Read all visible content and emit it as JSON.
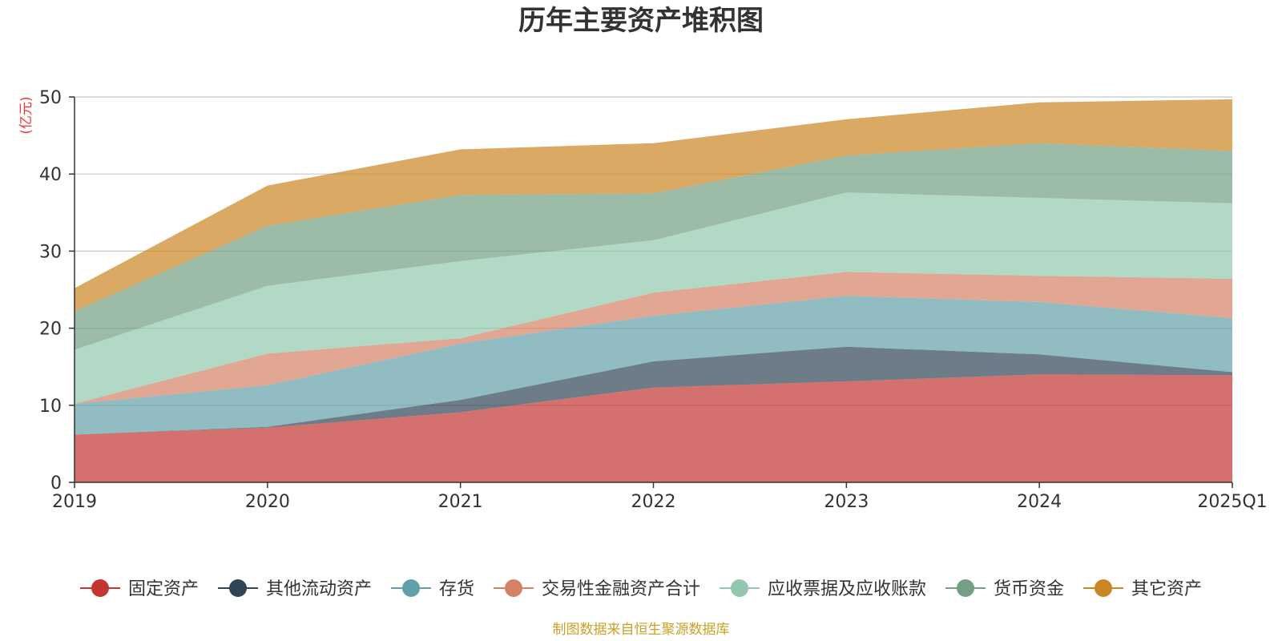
{
  "chart_data": {
    "type": "area",
    "stacked": true,
    "title": "历年主要资产堆积图",
    "unit_label": "(亿元)",
    "source_note": "制图数据来自恒生聚源数据库",
    "categories": [
      "2019",
      "2020",
      "2021",
      "2022",
      "2023",
      "2024",
      "2025Q1"
    ],
    "ylim": [
      0,
      50
    ],
    "yticks": [
      0,
      10,
      20,
      30,
      40,
      50
    ],
    "grid": true,
    "legend_position": "bottom",
    "series": [
      {
        "name": "固定资产",
        "color": "#c23531",
        "values": [
          6.2,
          7.1,
          9.1,
          12.3,
          13.1,
          14.0,
          13.9
        ]
      },
      {
        "name": "其他流动资产",
        "color": "#2f4554",
        "values": [
          0.0,
          0.1,
          1.6,
          3.4,
          4.5,
          2.6,
          0.4
        ]
      },
      {
        "name": "存货",
        "color": "#61a0a8",
        "values": [
          4.0,
          5.4,
          7.3,
          5.9,
          6.6,
          6.8,
          7.0
        ]
      },
      {
        "name": "交易性金融资产合计",
        "color": "#d48265",
        "values": [
          0.0,
          4.1,
          0.7,
          3.0,
          3.1,
          3.4,
          5.1
        ]
      },
      {
        "name": "应收票据及应收账款",
        "color": "#91c7ae",
        "values": [
          7.0,
          8.8,
          10.0,
          6.8,
          10.3,
          10.1,
          9.8
        ]
      },
      {
        "name": "货币资金",
        "color": "#749f83",
        "values": [
          5.0,
          7.8,
          8.6,
          6.1,
          4.8,
          7.1,
          6.8
        ]
      },
      {
        "name": "其它资产",
        "color": "#ca8622",
        "values": [
          3.0,
          5.2,
          5.9,
          6.5,
          4.7,
          5.3,
          6.7
        ]
      }
    ]
  }
}
